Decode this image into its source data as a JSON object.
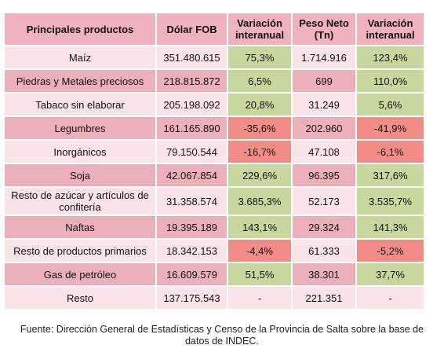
{
  "table": {
    "headers": [
      "Principales productos",
      "Dólar FOB",
      "Variación interanual",
      "Peso Neto (Tn)",
      "Variación interanual"
    ],
    "rows": [
      {
        "product": "Maíz",
        "fob": "351.480.615",
        "var_fob": "75,3%",
        "peso": "1.714.916",
        "var_peso": "123,4%",
        "shade": "light",
        "fob_sign": "pos",
        "peso_sign": "pos"
      },
      {
        "product": "Piedras y Metales preciosos",
        "fob": "218.815.872",
        "var_fob": "6,5%",
        "peso": "699",
        "var_peso": "110,0%",
        "shade": "dark",
        "fob_sign": "pos",
        "peso_sign": "pos"
      },
      {
        "product": "Tabaco sin elaborar",
        "fob": "205.198.092",
        "var_fob": "20,8%",
        "peso": "31.249",
        "var_peso": "5,6%",
        "shade": "light",
        "fob_sign": "pos",
        "peso_sign": "pos"
      },
      {
        "product": "Legumbres",
        "fob": "161.165.890",
        "var_fob": "-35,6%",
        "peso": "202.960",
        "var_peso": "-41,9%",
        "shade": "dark",
        "fob_sign": "neg",
        "peso_sign": "neg"
      },
      {
        "product": "Inorgánicos",
        "fob": "79.150.544",
        "var_fob": "-16,7%",
        "peso": "47.108",
        "var_peso": "-6,1%",
        "shade": "light",
        "fob_sign": "neg",
        "peso_sign": "neg"
      },
      {
        "product": "Soja",
        "fob": "42.067.854",
        "var_fob": "229,6%",
        "peso": "96.395",
        "var_peso": "317,6%",
        "shade": "dark",
        "fob_sign": "pos",
        "peso_sign": "pos"
      },
      {
        "product": "Resto de azúcar y artículos de confitería",
        "fob": "31.358.574",
        "var_fob": "3.685,3%",
        "peso": "52.173",
        "var_peso": "3.535,7%",
        "shade": "light",
        "fob_sign": "pos",
        "peso_sign": "pos"
      },
      {
        "product": "Naftas",
        "fob": "19.395.189",
        "var_fob": "143,1%",
        "peso": "29.324",
        "var_peso": "141,3%",
        "shade": "dark",
        "fob_sign": "pos",
        "peso_sign": "pos"
      },
      {
        "product": "Resto de productos primarios",
        "fob": "18.342.153",
        "var_fob": "-4,4%",
        "peso": "61.333",
        "var_peso": "-5,2%",
        "shade": "light",
        "fob_sign": "neg",
        "peso_sign": "neg"
      },
      {
        "product": "Gas de petróleo",
        "fob": "16.609.579",
        "var_fob": "51,5%",
        "peso": "38.301",
        "var_peso": "37,7%",
        "shade": "dark",
        "fob_sign": "pos",
        "peso_sign": "pos"
      },
      {
        "product": "Resto",
        "fob": "137.175.543",
        "var_fob": "-",
        "peso": "221.351",
        "var_peso": "-",
        "shade": "light",
        "fob_sign": "none",
        "peso_sign": "none"
      }
    ]
  },
  "footer": "Fuente: Dirección General de Estadísticas y Censo de la Provincia de Salta sobre la base de datos de INDEC.",
  "colors": {
    "positive": "#c6d89d",
    "negative": "#f28c87",
    "row_dark": "#ecb0ba",
    "row_light": "#fbe4e7",
    "header": "#f0b3bd"
  }
}
